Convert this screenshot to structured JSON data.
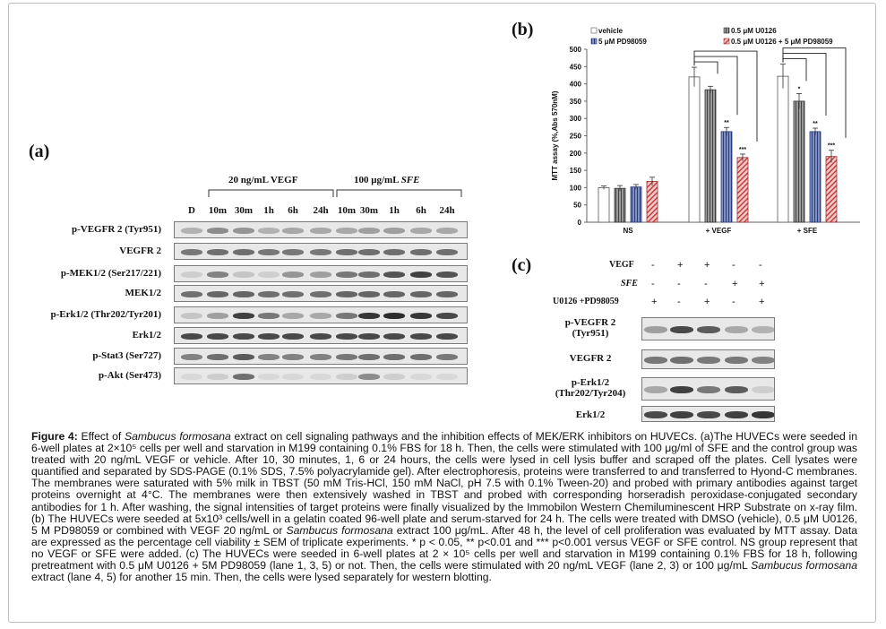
{
  "panel_a": {
    "letter": "(a)",
    "group_vegf": "20 ng/mL VEGF",
    "group_sfe_prefix": "100 μg/mL ",
    "group_sfe_italic": "SFE",
    "lanes": [
      "D",
      "10m",
      "30m",
      "1h",
      "6h",
      "24h",
      "10m",
      "30m",
      "1h",
      "6h",
      "24h"
    ],
    "rows": [
      {
        "label": "p-VEGFR 2  (Tyr951)",
        "bands": [
          0.25,
          0.45,
          0.4,
          0.25,
          0.3,
          0.3,
          0.3,
          0.35,
          0.35,
          0.3,
          0.3
        ]
      },
      {
        "label": "VEGFR 2",
        "bands": [
          0.55,
          0.6,
          0.6,
          0.55,
          0.55,
          0.55,
          0.6,
          0.6,
          0.6,
          0.6,
          0.6
        ]
      },
      {
        "label": "p-MEK1/2  (Ser217/221)",
        "bands": [
          0.1,
          0.5,
          0.15,
          0.1,
          0.4,
          0.35,
          0.55,
          0.6,
          0.75,
          0.85,
          0.75
        ]
      },
      {
        "label": "MEK1/2",
        "bands": [
          0.6,
          0.65,
          0.65,
          0.6,
          0.6,
          0.6,
          0.65,
          0.65,
          0.65,
          0.65,
          0.65
        ]
      },
      {
        "label": "p-Erk1/2 (Thr202/Tyr201)",
        "bands": [
          0.15,
          0.35,
          0.85,
          0.55,
          0.3,
          0.3,
          0.55,
          0.9,
          0.95,
          0.9,
          0.8
        ]
      },
      {
        "label": "Erk1/2",
        "bands": [
          0.8,
          0.8,
          0.8,
          0.8,
          0.8,
          0.8,
          0.8,
          0.8,
          0.8,
          0.8,
          0.8
        ]
      },
      {
        "label": "p-Stat3 (Ser727)",
        "bands": [
          0.5,
          0.6,
          0.7,
          0.5,
          0.5,
          0.5,
          0.55,
          0.6,
          0.6,
          0.6,
          0.55
        ]
      },
      {
        "label": "p-Akt (Ser473)",
        "bands": [
          0.05,
          0.1,
          0.6,
          0.05,
          0.05,
          0.05,
          0.1,
          0.45,
          0.1,
          0.05,
          0.05
        ]
      }
    ]
  },
  "panel_b": {
    "letter": "(b)",
    "legend": [
      "vehicle",
      "0.5 μM U0126",
      "5 μM PD98059",
      "0.5 μM U0126 + 5 μM PD98059"
    ],
    "ylabel": "MTT assay (%,Abs 570nM)",
    "yticks": [
      "0",
      "50",
      "100",
      "150",
      "200",
      "250",
      "300",
      "350",
      "400",
      "450",
      "500"
    ],
    "sig_labels": [
      "**",
      "***",
      "*",
      "**",
      "***"
    ]
  },
  "chart_data": {
    "type": "bar",
    "categories": [
      "NS",
      "+ VEGF",
      "+ SFE"
    ],
    "series": [
      {
        "name": "vehicle",
        "values": [
          100,
          420,
          422
        ],
        "errors": [
          5,
          28,
          35
        ]
      },
      {
        "name": "0.5 μM U0126",
        "values": [
          98,
          383,
          350
        ],
        "errors": [
          8,
          10,
          22
        ]
      },
      {
        "name": "5 μM PD98059",
        "values": [
          102,
          262,
          262
        ],
        "errors": [
          7,
          12,
          10
        ]
      },
      {
        "name": "0.5 μM U0126 + 5 μM PD98059",
        "values": [
          118,
          187,
          190
        ],
        "errors": [
          12,
          10,
          18
        ]
      }
    ],
    "ylabel": "MTT assay (%,Abs 570nM)",
    "ylim": [
      0,
      500
    ],
    "significance": [
      {
        "category": "+ VEGF",
        "series": "5 μM PD98059",
        "label": "**"
      },
      {
        "category": "+ VEGF",
        "series": "0.5 μM U0126 + 5 μM PD98059",
        "label": "***"
      },
      {
        "category": "+ SFE",
        "series": "0.5 μM U0126",
        "label": "*"
      },
      {
        "category": "+ SFE",
        "series": "5 μM PD98059",
        "label": "**"
      },
      {
        "category": "+ SFE",
        "series": "0.5 μM U0126 + 5 μM PD98059",
        "label": "***"
      }
    ],
    "colors": {
      "vehicle": "#ffffff",
      "u0126": "#7a7a7a",
      "pd": "#4a5a8a",
      "combo": "#c05050"
    }
  },
  "panel_c": {
    "letter": "(c)",
    "cond_labels": [
      "VEGF",
      "SFE",
      "U0126 +PD98059"
    ],
    "conditions": [
      [
        "-",
        "+",
        "+",
        "-",
        "-"
      ],
      [
        "-",
        "-",
        "-",
        "+",
        "+"
      ],
      [
        "+",
        "-",
        "+",
        "-",
        "+"
      ]
    ],
    "rows": [
      {
        "label1": "p-VEGFR 2",
        "label2": "(Tyr951)",
        "bands": [
          0.35,
          0.8,
          0.7,
          0.3,
          0.25
        ]
      },
      {
        "label1": "VEGFR 2",
        "label2": "",
        "bands": [
          0.55,
          0.6,
          0.55,
          0.55,
          0.5
        ]
      },
      {
        "label1": "p-Erk1/2",
        "label2": "(Thr202/Tyr204)",
        "bands": [
          0.3,
          0.85,
          0.55,
          0.7,
          0.1
        ]
      },
      {
        "label1": "Erk1/2",
        "label2": "",
        "bands": [
          0.8,
          0.85,
          0.8,
          0.85,
          0.9
        ]
      }
    ]
  },
  "caption": {
    "fig": "Figure 4:",
    "t1": " Effect of ",
    "i1": "Sambucus formosana",
    "t2": " extract on cell signaling pathways and the inhibition effects of MEK/ERK inhibitors on HUVECs. (a)The HUVECs were seeded in 6-well plates at 2×10⁵ cells per well and starvation in M199 containing 0.1% FBS for 18 h. Then, the cells were stimulated with 100 μg/ml of SFE and the control group was treated with 20 ng/mL VEGF or vehicle. After 10, 30 minutes, 1, 6 or 24 hours, the cells were lysed in cell lysis buffer and scraped off the plates. Cell lysates were quantified and separated by SDS-PAGE (0.1% SDS, 7.5% polyacrylamide gel). After electrophoresis, proteins were transferred to and transferred to Hyond-C membranes. The membranes were saturated with 5% milk in TBST (50 mM Tris-HCl, 150 mM NaCl, pH 7.5 with 0.1% Tween-20) and probed with primary antibodies against target proteins overnight at 4°C. The membranes were then extensively washed in TBST and probed with corresponding horseradish peroxidase-conjugated secondary antibodies for 1 h. After washing, the signal intensities of target proteins were finally visualized by the Immobilon Western Chemiluminescent HRP Substrate on x-ray film. (b) The HUVECs were seeded at 5x10³ cells/well in a gelatin coated 96-well plate and serum-starved for 24 h.  The cells were treated with DMSO (vehicle), 0.5 μM U0126, 5 M PD98059 or combined with VEGF 20 ng/mL or ",
    "i2": "Sambucus formosana",
    "t3": " extract 100 μg/mL. After 48 h, the level of cell proliferation was evaluated by MTT assay. Data are expressed as the percentage cell viability ± SEM of triplicate experiments. * p < 0.05, ** p<0.01 and *** p<0.001 versus VEGF or SFE control. NS group represent that no VEGF or SFE were added. (c) The HUVECs were seeded in 6-well plates at 2 × 10⁵ cells per well and starvation in M199 containing 0.1% FBS for 18 h, following pretreatment with 0.5 μM U0126 + 5M PD98059 (lane 1, 3, 5) or not. Then, the cells were stimulated with 20 ng/mL VEGF (lane 2, 3) or 100 μg/mL ",
    "i3": "Sambucus formosana",
    "t4": " extract (lane 4, 5) for another 15 min. Then, the cells were lysed separately for western blotting."
  }
}
